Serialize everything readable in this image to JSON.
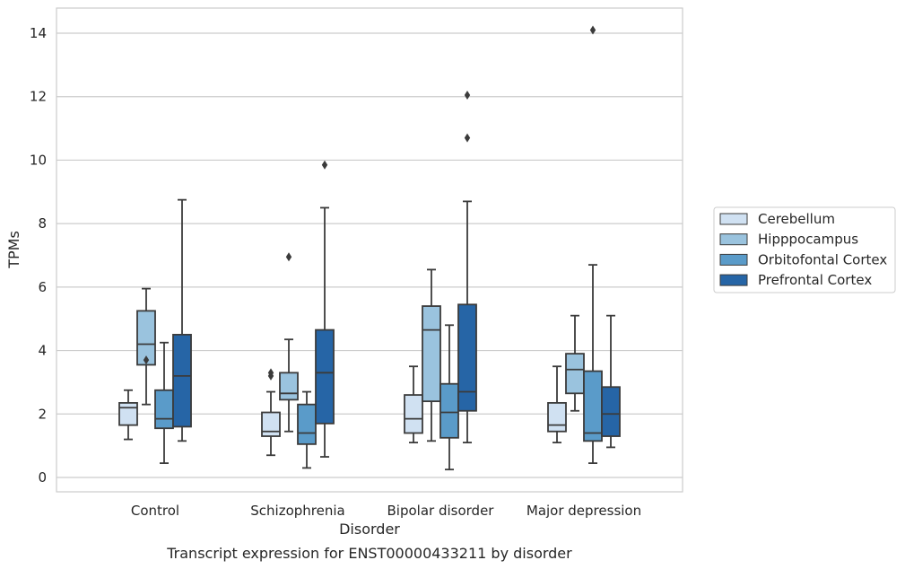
{
  "chart_data": {
    "type": "box",
    "caption": "Transcript expression for ENST00000433211 by disorder",
    "xlabel": "Disorder",
    "ylabel": "TPMs",
    "ylim": [
      -0.4,
      14.8
    ],
    "yticks": [
      0,
      2,
      4,
      6,
      8,
      10,
      12,
      14
    ],
    "grid": "horizontal",
    "legend_position": "right",
    "categories": [
      "Control",
      "Schizophrenia",
      "Bipolar disorder",
      "Major depression"
    ],
    "series": [
      {
        "name": "Cerebellum",
        "color": "#d0e1f2",
        "boxes": [
          {
            "whisker_low": 1.2,
            "q1": 1.65,
            "median": 2.2,
            "q3": 2.35,
            "whisker_high": 2.75,
            "outliers": []
          },
          {
            "whisker_low": 0.7,
            "q1": 1.3,
            "median": 1.45,
            "q3": 2.05,
            "whisker_high": 2.7,
            "outliers": [
              3.2,
              3.3
            ]
          },
          {
            "whisker_low": 1.1,
            "q1": 1.4,
            "median": 1.85,
            "q3": 2.6,
            "whisker_high": 3.5,
            "outliers": []
          },
          {
            "whisker_low": 1.1,
            "q1": 1.45,
            "median": 1.65,
            "q3": 2.35,
            "whisker_high": 3.5,
            "outliers": []
          }
        ]
      },
      {
        "name": "Hipppocampus",
        "color": "#9ac3de",
        "boxes": [
          {
            "whisker_low": 2.3,
            "q1": 3.55,
            "median": 4.2,
            "q3": 5.25,
            "whisker_high": 5.95,
            "outliers": [
              3.7
            ]
          },
          {
            "whisker_low": 1.45,
            "q1": 2.45,
            "median": 2.65,
            "q3": 3.3,
            "whisker_high": 4.35,
            "outliers": [
              6.95
            ]
          },
          {
            "whisker_low": 1.15,
            "q1": 2.4,
            "median": 4.65,
            "q3": 5.4,
            "whisker_high": 6.55,
            "outliers": []
          },
          {
            "whisker_low": 2.1,
            "q1": 2.65,
            "median": 3.4,
            "q3": 3.9,
            "whisker_high": 5.1,
            "outliers": []
          }
        ]
      },
      {
        "name": "Orbitofontal Cortex",
        "color": "#5a9bc9",
        "boxes": [
          {
            "whisker_low": 0.45,
            "q1": 1.55,
            "median": 1.85,
            "q3": 2.75,
            "whisker_high": 4.25,
            "outliers": []
          },
          {
            "whisker_low": 0.3,
            "q1": 1.05,
            "median": 1.4,
            "q3": 2.3,
            "whisker_high": 2.7,
            "outliers": []
          },
          {
            "whisker_low": 0.25,
            "q1": 1.25,
            "median": 2.05,
            "q3": 2.95,
            "whisker_high": 4.8,
            "outliers": []
          },
          {
            "whisker_low": 0.45,
            "q1": 1.15,
            "median": 1.4,
            "q3": 3.35,
            "whisker_high": 6.7,
            "outliers": [
              14.1
            ]
          }
        ]
      },
      {
        "name": "Prefrontal Cortex",
        "color": "#2665a6",
        "boxes": [
          {
            "whisker_low": 1.15,
            "q1": 1.6,
            "median": 3.2,
            "q3": 4.5,
            "whisker_high": 8.75,
            "outliers": []
          },
          {
            "whisker_low": 0.65,
            "q1": 1.7,
            "median": 3.3,
            "q3": 4.65,
            "whisker_high": 8.5,
            "outliers": [
              9.85
            ]
          },
          {
            "whisker_low": 1.1,
            "q1": 2.1,
            "median": 2.7,
            "q3": 5.45,
            "whisker_high": 8.7,
            "outliers": [
              10.7,
              12.05
            ]
          },
          {
            "whisker_low": 0.95,
            "q1": 1.3,
            "median": 2.0,
            "q3": 2.85,
            "whisker_high": 5.1,
            "outliers": []
          }
        ]
      }
    ],
    "colors": {
      "grid": "#cccccc",
      "axes_frame": "#cccccc",
      "box_edge": "#3b3b3b",
      "text": "#262626"
    }
  }
}
